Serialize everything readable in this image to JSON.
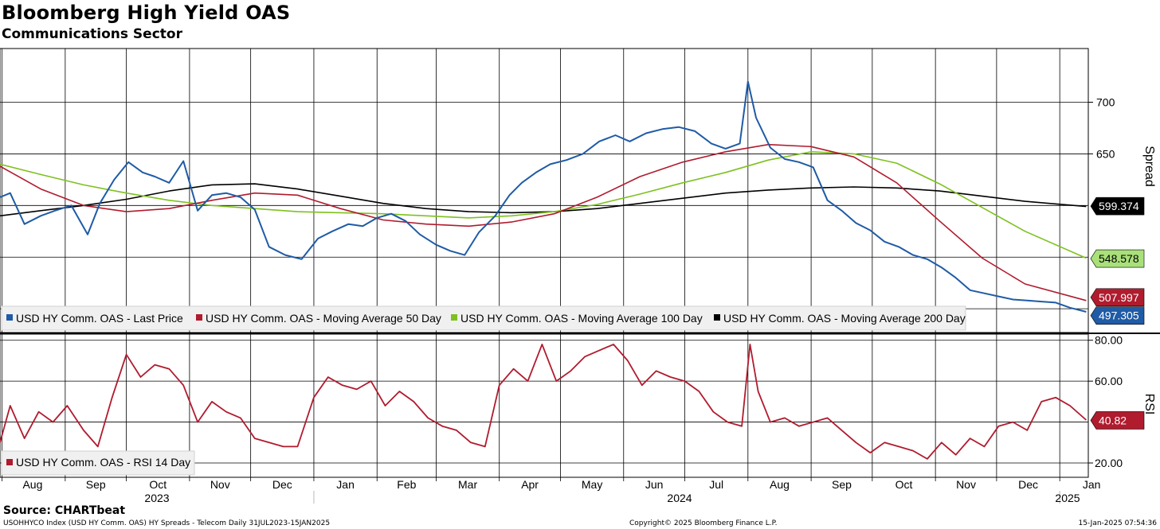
{
  "header": {
    "title": "Bloomberg High Yield OAS",
    "subtitle": "Communications Sector"
  },
  "footer": {
    "source": "Source: CHARTbeat",
    "description": "USOHHYCO Index (USD HY Comm. OAS) HY Spreads - Telecom  Daily 31JUL2023-15JAN2025",
    "copyright": "Copyright© 2025 Bloomberg Finance L.P.",
    "timestamp": "15-Jan-2025 07:54:36"
  },
  "chart_data": [
    {
      "type": "line",
      "ylabel": "Spread",
      "ylim": [
        477,
        752
      ],
      "yticks": [
        700,
        650
      ],
      "grid": true,
      "legend_position": "bottom-left",
      "x_months": [
        "Aug",
        "Sep",
        "Oct",
        "Nov",
        "Dec",
        "Jan",
        "Feb",
        "Mar",
        "Apr",
        "May",
        "Jun",
        "Jul",
        "Aug",
        "Sep",
        "Oct",
        "Nov",
        "Dec",
        "Jan"
      ],
      "x_years": [
        "2023",
        "2024",
        "2025"
      ],
      "series": [
        {
          "name": "USD HY Comm. OAS - Last Price",
          "color": "#1f5ba6",
          "last_label": "497.305",
          "x": [
            "2023-07-31",
            "2023-08-05",
            "2023-08-12",
            "2023-08-20",
            "2023-08-27",
            "2023-09-04",
            "2023-09-12",
            "2023-09-18",
            "2023-09-25",
            "2023-10-02",
            "2023-10-09",
            "2023-10-15",
            "2023-10-22",
            "2023-10-29",
            "2023-11-05",
            "2023-11-12",
            "2023-11-19",
            "2023-11-26",
            "2023-12-03",
            "2023-12-10",
            "2023-12-18",
            "2023-12-26",
            "2024-01-03",
            "2024-01-10",
            "2024-01-18",
            "2024-01-25",
            "2024-02-01",
            "2024-02-08",
            "2024-02-15",
            "2024-02-22",
            "2024-03-01",
            "2024-03-08",
            "2024-03-15",
            "2024-03-22",
            "2024-03-30",
            "2024-04-06",
            "2024-04-12",
            "2024-04-19",
            "2024-04-26",
            "2024-05-04",
            "2024-05-12",
            "2024-05-20",
            "2024-05-28",
            "2024-06-04",
            "2024-06-12",
            "2024-06-20",
            "2024-06-28",
            "2024-07-06",
            "2024-07-14",
            "2024-07-21",
            "2024-07-28",
            "2024-08-01",
            "2024-08-05",
            "2024-08-12",
            "2024-08-19",
            "2024-08-26",
            "2024-09-02",
            "2024-09-09",
            "2024-09-16",
            "2024-09-23",
            "2024-09-30",
            "2024-10-07",
            "2024-10-14",
            "2024-10-21",
            "2024-10-28",
            "2024-11-04",
            "2024-11-11",
            "2024-11-18",
            "2024-11-25",
            "2024-12-02",
            "2024-12-09",
            "2024-12-16",
            "2024-12-23",
            "2024-12-30",
            "2025-01-06",
            "2025-01-14"
          ],
          "values": [
            608,
            612,
            582,
            590,
            595,
            600,
            572,
            602,
            625,
            642,
            632,
            628,
            622,
            643,
            595,
            610,
            612,
            608,
            596,
            560,
            552,
            548,
            568,
            575,
            582,
            580,
            588,
            592,
            585,
            572,
            562,
            556,
            552,
            574,
            590,
            610,
            622,
            632,
            640,
            644,
            650,
            662,
            668,
            662,
            670,
            674,
            676,
            672,
            660,
            655,
            660,
            720,
            685,
            656,
            645,
            642,
            637,
            605,
            595,
            583,
            576,
            565,
            560,
            552,
            548,
            540,
            530,
            518,
            515,
            512,
            509,
            508,
            507,
            506,
            501,
            497
          ]
        },
        {
          "name": "USD HY Comm. OAS - Moving Average 50 Day",
          "color": "#b01b2e",
          "last_label": "507.997",
          "x": [
            "2023-07-31",
            "2023-08-20",
            "2023-09-10",
            "2023-10-01",
            "2023-10-22",
            "2023-11-12",
            "2023-12-03",
            "2023-12-24",
            "2024-01-14",
            "2024-02-04",
            "2024-02-25",
            "2024-03-17",
            "2024-04-07",
            "2024-04-28",
            "2024-05-19",
            "2024-06-09",
            "2024-06-30",
            "2024-07-21",
            "2024-08-11",
            "2024-09-01",
            "2024-09-22",
            "2024-10-13",
            "2024-11-03",
            "2024-11-24",
            "2024-12-15",
            "2025-01-14"
          ],
          "values": [
            638,
            616,
            600,
            594,
            597,
            605,
            612,
            610,
            597,
            586,
            582,
            580,
            584,
            592,
            608,
            628,
            642,
            652,
            659,
            657,
            647,
            622,
            585,
            549,
            524,
            508
          ]
        },
        {
          "name": "USD HY Comm. OAS - Moving Average 100 Day",
          "color": "#7ec11f",
          "last_label": "548.578",
          "x": [
            "2023-07-31",
            "2023-08-20",
            "2023-09-10",
            "2023-10-01",
            "2023-10-22",
            "2023-11-12",
            "2023-12-03",
            "2023-12-24",
            "2024-01-14",
            "2024-02-04",
            "2024-02-25",
            "2024-03-17",
            "2024-04-07",
            "2024-04-28",
            "2024-05-19",
            "2024-06-09",
            "2024-06-30",
            "2024-07-21",
            "2024-08-11",
            "2024-09-01",
            "2024-09-22",
            "2024-10-13",
            "2024-11-03",
            "2024-11-24",
            "2024-12-15",
            "2025-01-14"
          ],
          "values": [
            640,
            630,
            620,
            612,
            605,
            600,
            597,
            594,
            593,
            592,
            590,
            588,
            590,
            594,
            601,
            611,
            622,
            632,
            644,
            652,
            650,
            641,
            621,
            598,
            575,
            549
          ]
        },
        {
          "name": "USD HY Comm. OAS - Moving Average 200 Day",
          "color": "#000000",
          "last_label": "599.374",
          "x": [
            "2023-07-31",
            "2023-08-20",
            "2023-09-10",
            "2023-10-01",
            "2023-10-22",
            "2023-11-12",
            "2023-12-03",
            "2023-12-24",
            "2024-01-14",
            "2024-02-04",
            "2024-02-25",
            "2024-03-17",
            "2024-04-07",
            "2024-04-28",
            "2024-05-19",
            "2024-06-09",
            "2024-06-30",
            "2024-07-21",
            "2024-08-11",
            "2024-09-01",
            "2024-09-22",
            "2024-10-13",
            "2024-11-03",
            "2024-11-24",
            "2024-12-15",
            "2025-01-14"
          ],
          "values": [
            590,
            595,
            600,
            606,
            614,
            620,
            621,
            616,
            609,
            602,
            597,
            594,
            593,
            594,
            597,
            602,
            607,
            612,
            615,
            617,
            618,
            617,
            614,
            609,
            604,
            599
          ]
        }
      ]
    },
    {
      "type": "line",
      "ylabel": "RSI",
      "ylim": [
        13,
        83
      ],
      "yticks": [
        "80.00",
        "60.00",
        "20.00"
      ],
      "grid": true,
      "legend_position": "bottom-left",
      "series": [
        {
          "name": "USD HY Comm. OAS - RSI 14 Day",
          "color": "#b01b2e",
          "last_label": "40.82",
          "x": [
            "2023-07-31",
            "2023-08-05",
            "2023-08-12",
            "2023-08-19",
            "2023-08-26",
            "2023-09-02",
            "2023-09-10",
            "2023-09-17",
            "2023-09-24",
            "2023-10-01",
            "2023-10-08",
            "2023-10-15",
            "2023-10-22",
            "2023-10-29",
            "2023-11-05",
            "2023-11-12",
            "2023-11-19",
            "2023-11-26",
            "2023-12-03",
            "2023-12-10",
            "2023-12-17",
            "2023-12-24",
            "2024-01-01",
            "2024-01-08",
            "2024-01-15",
            "2024-01-22",
            "2024-01-29",
            "2024-02-05",
            "2024-02-12",
            "2024-02-19",
            "2024-02-26",
            "2024-03-04",
            "2024-03-11",
            "2024-03-18",
            "2024-03-25",
            "2024-04-01",
            "2024-04-08",
            "2024-04-15",
            "2024-04-22",
            "2024-04-29",
            "2024-05-06",
            "2024-05-13",
            "2024-05-20",
            "2024-05-27",
            "2024-06-03",
            "2024-06-10",
            "2024-06-17",
            "2024-06-24",
            "2024-07-01",
            "2024-07-08",
            "2024-07-15",
            "2024-07-22",
            "2024-07-29",
            "2024-08-02",
            "2024-08-06",
            "2024-08-12",
            "2024-08-19",
            "2024-08-26",
            "2024-09-02",
            "2024-09-09",
            "2024-09-16",
            "2024-09-23",
            "2024-09-30",
            "2024-10-07",
            "2024-10-14",
            "2024-10-21",
            "2024-10-28",
            "2024-11-04",
            "2024-11-11",
            "2024-11-18",
            "2024-11-25",
            "2024-12-02",
            "2024-12-09",
            "2024-12-16",
            "2024-12-23",
            "2024-12-30",
            "2025-01-06",
            "2025-01-14"
          ],
          "values": [
            30,
            48,
            32,
            45,
            40,
            48,
            36,
            28,
            52,
            73,
            62,
            68,
            66,
            58,
            40,
            50,
            45,
            42,
            32,
            30,
            28,
            28,
            52,
            62,
            58,
            56,
            60,
            48,
            55,
            50,
            42,
            38,
            36,
            30,
            28,
            58,
            66,
            60,
            78,
            60,
            65,
            72,
            75,
            78,
            70,
            58,
            65,
            62,
            60,
            55,
            45,
            40,
            38,
            78,
            55,
            40,
            42,
            38,
            40,
            42,
            36,
            30,
            25,
            30,
            28,
            26,
            22,
            30,
            24,
            32,
            28,
            38,
            40,
            36,
            50,
            52,
            48,
            41
          ]
        }
      ]
    }
  ]
}
